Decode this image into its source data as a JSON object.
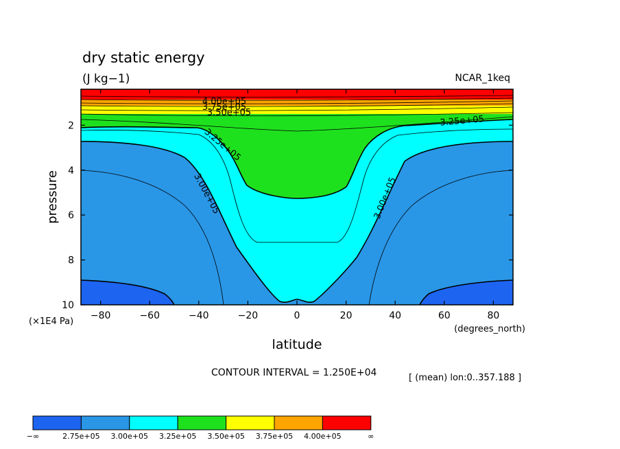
{
  "chart_data": {
    "type": "contour",
    "title": "dry static energy",
    "units": "(J kg−1)",
    "dataset": "NCAR_1keq",
    "xlabel": "latitude",
    "xunits": "(degrees_north)",
    "ylabel": "pressure",
    "yunits": "(×1E4 Pa)",
    "xlim": [
      -88,
      88
    ],
    "ylim": [
      10,
      0.4
    ],
    "x_ticks": [
      -80,
      -60,
      -40,
      -20,
      0,
      20,
      40,
      60,
      80
    ],
    "x_tick_labels": [
      "−80",
      "−60",
      "−40",
      "−20",
      "0",
      "20",
      "40",
      "60",
      "80"
    ],
    "y_ticks": [
      2,
      4,
      6,
      8,
      10
    ],
    "y_tick_labels": [
      "2",
      "4",
      "6",
      "8",
      "10"
    ],
    "contour_interval_text": "CONTOUR INTERVAL = 1.250E+04",
    "mean_text": "[ (mean) lon:0..357.188 ]",
    "levels": [
      275000,
      300000,
      325000,
      350000,
      375000,
      400000
    ],
    "contour_labels": [
      "4.00e+05",
      "3.75e+05",
      "3.50e+05",
      "3.25e+05",
      "3.25e+05",
      "3.00e+05",
      "3.00e+05"
    ],
    "colorbar": {
      "colors": [
        "#1d64f0",
        "#2a96e6",
        "#00ffff",
        "#1ee11e",
        "#ffff00",
        "#ffa500",
        "#ff0000"
      ],
      "labels": [
        "−∞",
        "2.75e+05",
        "3.00e+05",
        "3.25e+05",
        "3.50e+05",
        "3.75e+05",
        "4.00e+05",
        "∞"
      ]
    }
  }
}
